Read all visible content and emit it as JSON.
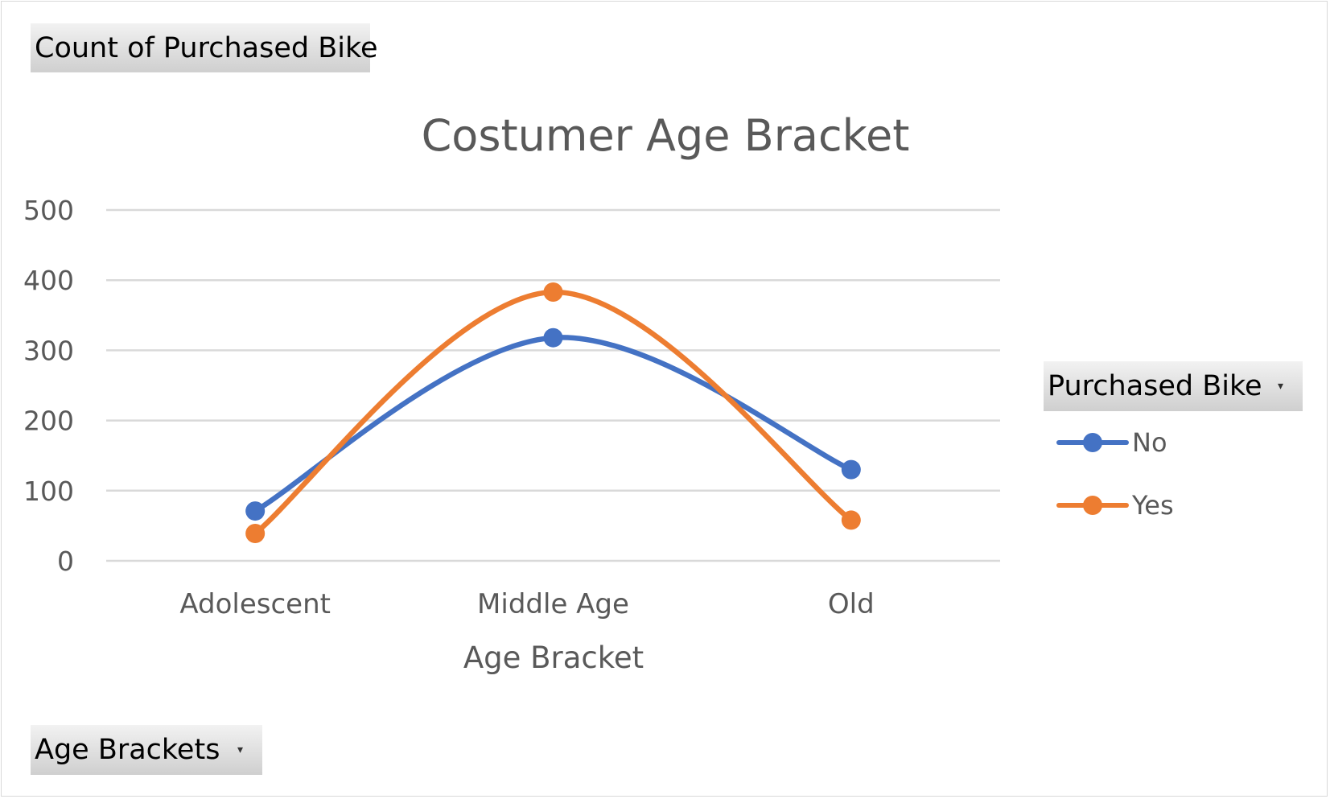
{
  "pivot": {
    "value_field": "Count of Purchased Bike",
    "axis_field": "Age Brackets",
    "legend_field": "Purchased Bike",
    "dropdown_glyph": "▾"
  },
  "chart_data": {
    "type": "line",
    "smooth": true,
    "title": "Costumer Age Bracket",
    "xlabel": "Age Bracket",
    "ylabel": "",
    "categories": [
      "Adolescent",
      "Middle Age",
      "Old"
    ],
    "ylim": [
      0,
      500
    ],
    "yticks": [
      0,
      100,
      200,
      300,
      400,
      500
    ],
    "grid": true,
    "legend_position": "right",
    "series": [
      {
        "name": "No",
        "values": [
          71,
          318,
          130
        ],
        "color": "#4472C4"
      },
      {
        "name": "Yes",
        "values": [
          39,
          383,
          58
        ],
        "color": "#ED7D31"
      }
    ]
  }
}
